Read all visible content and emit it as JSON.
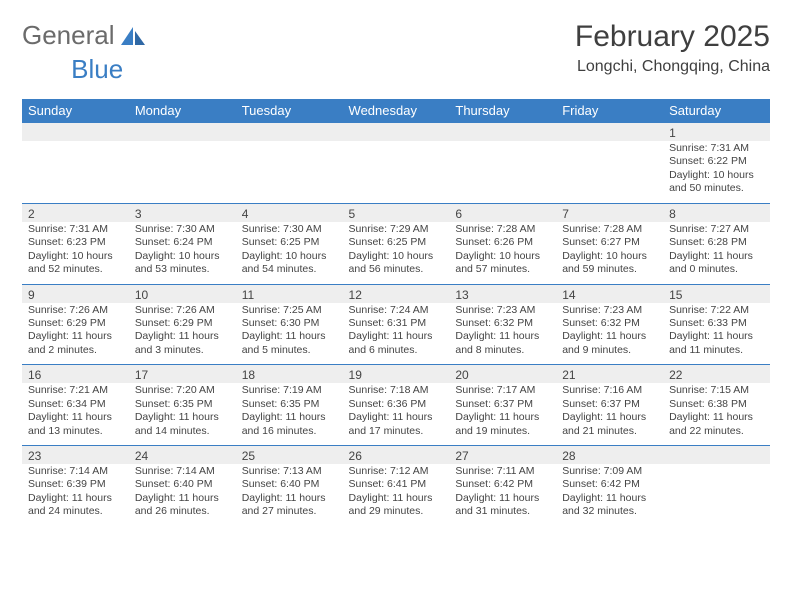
{
  "brand": {
    "part1": "General",
    "part2": "Blue"
  },
  "title": "February 2025",
  "location": "Longchi, Chongqing, China",
  "colors": {
    "header_bg": "#3a7ec4",
    "header_text": "#ffffff",
    "daynum_bg": "#eeeeee",
    "border": "#3a7ec4",
    "text": "#444444",
    "bg": "#ffffff"
  },
  "weekday_labels": [
    "Sunday",
    "Monday",
    "Tuesday",
    "Wednesday",
    "Thursday",
    "Friday",
    "Saturday"
  ],
  "weeks": [
    [
      null,
      null,
      null,
      null,
      null,
      null,
      {
        "n": "1",
        "sr": "7:31 AM",
        "ss": "6:22 PM",
        "dl": "10 hours and 50 minutes."
      }
    ],
    [
      {
        "n": "2",
        "sr": "7:31 AM",
        "ss": "6:23 PM",
        "dl": "10 hours and 52 minutes."
      },
      {
        "n": "3",
        "sr": "7:30 AM",
        "ss": "6:24 PM",
        "dl": "10 hours and 53 minutes."
      },
      {
        "n": "4",
        "sr": "7:30 AM",
        "ss": "6:25 PM",
        "dl": "10 hours and 54 minutes."
      },
      {
        "n": "5",
        "sr": "7:29 AM",
        "ss": "6:25 PM",
        "dl": "10 hours and 56 minutes."
      },
      {
        "n": "6",
        "sr": "7:28 AM",
        "ss": "6:26 PM",
        "dl": "10 hours and 57 minutes."
      },
      {
        "n": "7",
        "sr": "7:28 AM",
        "ss": "6:27 PM",
        "dl": "10 hours and 59 minutes."
      },
      {
        "n": "8",
        "sr": "7:27 AM",
        "ss": "6:28 PM",
        "dl": "11 hours and 0 minutes."
      }
    ],
    [
      {
        "n": "9",
        "sr": "7:26 AM",
        "ss": "6:29 PM",
        "dl": "11 hours and 2 minutes."
      },
      {
        "n": "10",
        "sr": "7:26 AM",
        "ss": "6:29 PM",
        "dl": "11 hours and 3 minutes."
      },
      {
        "n": "11",
        "sr": "7:25 AM",
        "ss": "6:30 PM",
        "dl": "11 hours and 5 minutes."
      },
      {
        "n": "12",
        "sr": "7:24 AM",
        "ss": "6:31 PM",
        "dl": "11 hours and 6 minutes."
      },
      {
        "n": "13",
        "sr": "7:23 AM",
        "ss": "6:32 PM",
        "dl": "11 hours and 8 minutes."
      },
      {
        "n": "14",
        "sr": "7:23 AM",
        "ss": "6:32 PM",
        "dl": "11 hours and 9 minutes."
      },
      {
        "n": "15",
        "sr": "7:22 AM",
        "ss": "6:33 PM",
        "dl": "11 hours and 11 minutes."
      }
    ],
    [
      {
        "n": "16",
        "sr": "7:21 AM",
        "ss": "6:34 PM",
        "dl": "11 hours and 13 minutes."
      },
      {
        "n": "17",
        "sr": "7:20 AM",
        "ss": "6:35 PM",
        "dl": "11 hours and 14 minutes."
      },
      {
        "n": "18",
        "sr": "7:19 AM",
        "ss": "6:35 PM",
        "dl": "11 hours and 16 minutes."
      },
      {
        "n": "19",
        "sr": "7:18 AM",
        "ss": "6:36 PM",
        "dl": "11 hours and 17 minutes."
      },
      {
        "n": "20",
        "sr": "7:17 AM",
        "ss": "6:37 PM",
        "dl": "11 hours and 19 minutes."
      },
      {
        "n": "21",
        "sr": "7:16 AM",
        "ss": "6:37 PM",
        "dl": "11 hours and 21 minutes."
      },
      {
        "n": "22",
        "sr": "7:15 AM",
        "ss": "6:38 PM",
        "dl": "11 hours and 22 minutes."
      }
    ],
    [
      {
        "n": "23",
        "sr": "7:14 AM",
        "ss": "6:39 PM",
        "dl": "11 hours and 24 minutes."
      },
      {
        "n": "24",
        "sr": "7:14 AM",
        "ss": "6:40 PM",
        "dl": "11 hours and 26 minutes."
      },
      {
        "n": "25",
        "sr": "7:13 AM",
        "ss": "6:40 PM",
        "dl": "11 hours and 27 minutes."
      },
      {
        "n": "26",
        "sr": "7:12 AM",
        "ss": "6:41 PM",
        "dl": "11 hours and 29 minutes."
      },
      {
        "n": "27",
        "sr": "7:11 AM",
        "ss": "6:42 PM",
        "dl": "11 hours and 31 minutes."
      },
      {
        "n": "28",
        "sr": "7:09 AM",
        "ss": "6:42 PM",
        "dl": "11 hours and 32 minutes."
      },
      null
    ]
  ],
  "labels": {
    "sunrise": "Sunrise:",
    "sunset": "Sunset:",
    "daylight": "Daylight:"
  }
}
